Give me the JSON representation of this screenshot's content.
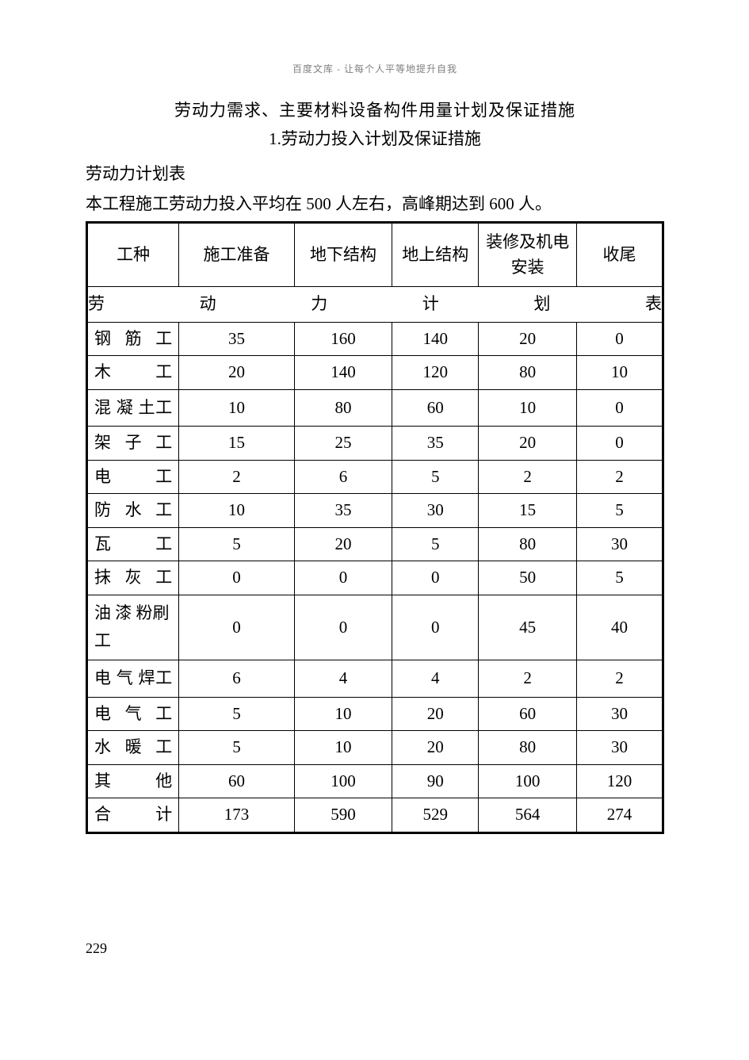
{
  "header_watermark": "百度文库 - 让每个人平等地提升自我",
  "title_1": "劳动力需求、主要材料设备构件用量计划及保证措施",
  "title_2": "1.劳动力投入计划及保证措施",
  "subtitle": "劳动力计划表",
  "description": "本工程施工劳动力投入平均在 500 人左右，高峰期达到 600 人。",
  "page_number": "229",
  "table": {
    "title": "劳动力计划表",
    "columns": [
      "工种",
      "施工准备",
      "地下结构",
      "地上结构",
      "装修及机电安装",
      "收尾"
    ],
    "rows": [
      [
        "钢筋工",
        "35",
        "160",
        "140",
        "20",
        "0"
      ],
      [
        "木工",
        "20",
        "140",
        "120",
        "80",
        "10"
      ],
      [
        "混 凝 土工",
        "10",
        "80",
        "60",
        "10",
        "0"
      ],
      [
        "架子工",
        "15",
        "25",
        "35",
        "20",
        "0"
      ],
      [
        "电工",
        "2",
        "6",
        "5",
        "2",
        "2"
      ],
      [
        "防水工",
        "10",
        "35",
        "30",
        "15",
        "5"
      ],
      [
        "瓦工",
        "5",
        "20",
        "5",
        "80",
        "30"
      ],
      [
        "抹灰工",
        "0",
        "0",
        "0",
        "50",
        "5"
      ],
      [
        "油 漆 粉刷工",
        "0",
        "0",
        "0",
        "45",
        "40"
      ],
      [
        "电 气 焊工",
        "6",
        "4",
        "4",
        "2",
        "2"
      ],
      [
        "电气工",
        "5",
        "10",
        "20",
        "60",
        "30"
      ],
      [
        "水暖工",
        "5",
        "10",
        "20",
        "80",
        "30"
      ],
      [
        "其他",
        "60",
        "100",
        "90",
        "100",
        "120"
      ],
      [
        "合计",
        "173",
        "590",
        "529",
        "564",
        "274"
      ]
    ],
    "column_widths": [
      "16%",
      "20%",
      "17%",
      "15%",
      "17%",
      "15%"
    ],
    "border_color": "#000000",
    "outer_border_width": 3,
    "inner_border_width": 1,
    "font_size": 21,
    "background_color": "#ffffff"
  }
}
